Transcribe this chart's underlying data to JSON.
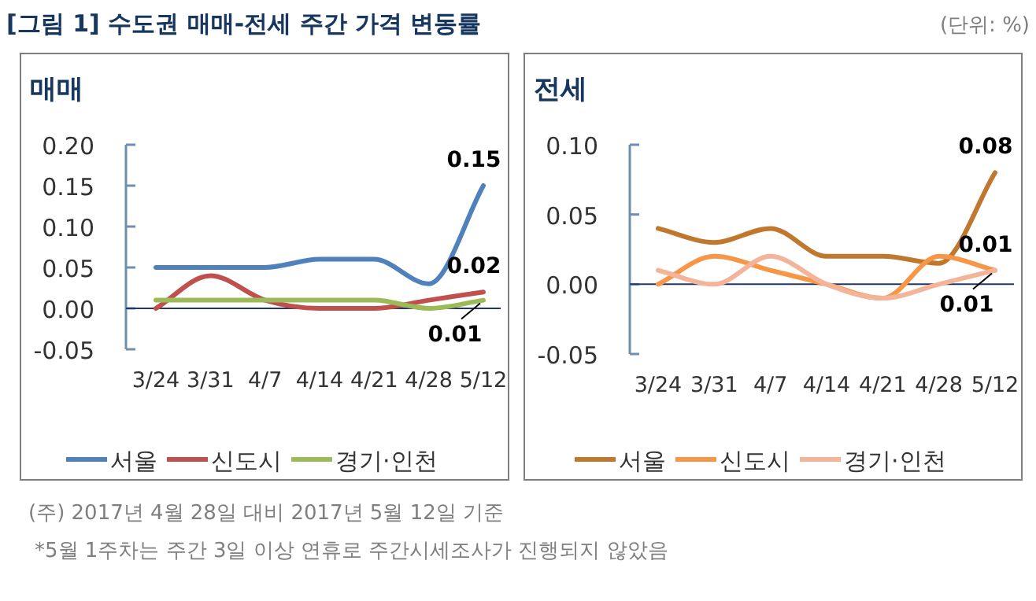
{
  "chart_data": [
    {
      "type": "line",
      "title": "매매",
      "categories": [
        "3/24",
        "3/31",
        "4/7",
        "4/14",
        "4/21",
        "4/28",
        "5/12"
      ],
      "ylim": [
        -0.05,
        0.2
      ],
      "yticks": [
        {
          "value": -0.05,
          "label": "-0.05"
        },
        {
          "value": 0,
          "label": "0.00"
        },
        {
          "value": 0.05,
          "label": "0.05"
        },
        {
          "value": 0.1,
          "label": "0.10"
        },
        {
          "value": 0.15,
          "label": "0.15"
        },
        {
          "value": 0.2,
          "label": "0.20"
        }
      ],
      "legend": "bottom",
      "ref_lines": [
        {
          "axis": "y",
          "value": 0,
          "color": "#1f3864"
        }
      ],
      "annotations": [
        "[그림 1] 수도권 매매-전세 주간 가격 변동률",
        "(단위: %)"
      ],
      "series": [
        {
          "name": "서울",
          "color": "#4f81bd",
          "values": [
            0.05,
            0.05,
            0.05,
            0.06,
            0.06,
            0.03,
            0.15
          ],
          "value_labels": [
            null,
            null,
            null,
            null,
            null,
            null,
            "0.15"
          ]
        },
        {
          "name": "신도시",
          "color": "#c0504d",
          "values": [
            0.0,
            0.04,
            0.01,
            0.0,
            0.0,
            0.01,
            0.02
          ],
          "value_labels": [
            null,
            null,
            null,
            null,
            null,
            null,
            "0.02"
          ]
        },
        {
          "name": "경기·인천",
          "color": "#9bbb59",
          "values": [
            0.01,
            0.01,
            0.01,
            0.01,
            0.01,
            0.0,
            0.01
          ],
          "value_labels": [
            null,
            null,
            null,
            null,
            null,
            null,
            "0.01"
          ]
        }
      ]
    },
    {
      "type": "line",
      "title": "전세",
      "categories": [
        "3/24",
        "3/31",
        "4/7",
        "4/14",
        "4/21",
        "4/28",
        "5/12"
      ],
      "ylim": [
        -0.05,
        0.1
      ],
      "yticks": [
        {
          "value": -0.05,
          "label": "-0.05"
        },
        {
          "value": 0,
          "label": "0.00"
        },
        {
          "value": 0.05,
          "label": "0.05"
        },
        {
          "value": 0.1,
          "label": "0.10"
        }
      ],
      "legend": "bottom",
      "ref_lines": [
        {
          "axis": "y",
          "value": 0,
          "color": "#1f3864"
        }
      ],
      "annotations": [
        "(주) 2017년 4월 28일 대비 2017년 5월 12일 기준",
        "*5월 1주차는 주간 3일 이상 연휴로 주간시세조사가 진행되지 않았음"
      ],
      "series": [
        {
          "name": "서울",
          "color": "#c0782f",
          "values": [
            0.04,
            0.03,
            0.04,
            0.02,
            0.02,
            0.015,
            0.08
          ],
          "value_labels": [
            null,
            null,
            null,
            null,
            null,
            null,
            "0.08"
          ]
        },
        {
          "name": "신도시",
          "color": "#f79646",
          "values": [
            0.0,
            0.02,
            0.01,
            0.0,
            -0.01,
            0.02,
            0.01
          ],
          "value_labels": [
            null,
            null,
            null,
            null,
            null,
            null,
            "0.01"
          ]
        },
        {
          "name": "경기·인천",
          "color": "#f4b49a",
          "values": [
            0.01,
            0.0,
            0.02,
            0.0,
            -0.01,
            0.0,
            0.01
          ],
          "value_labels": [
            null,
            null,
            null,
            null,
            null,
            null,
            "0.01"
          ]
        }
      ]
    }
  ]
}
